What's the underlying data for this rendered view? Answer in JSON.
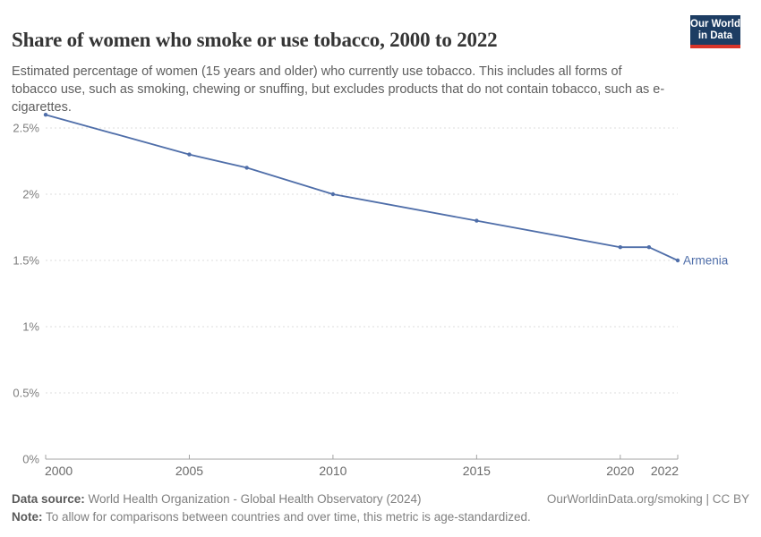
{
  "header": {
    "title": "Share of women who smoke or use tobacco, 2000 to 2022",
    "logo": {
      "line1": "Our World",
      "line2": "in Data"
    }
  },
  "subtitle": "Estimated percentage of women (15 years and older) who currently use tobacco. This includes all forms of tobacco use, such as smoking, chewing or snuffing, but excludes products that do not contain tobacco, such as e-cigarettes.",
  "chart_data": {
    "type": "line",
    "title": "Share of women who smoke or use tobacco, 2000 to 2022",
    "series": [
      {
        "name": "Armenia",
        "color": "#4F6EA9",
        "x": [
          2000,
          2005,
          2007,
          2010,
          2015,
          2020,
          2021,
          2022
        ],
        "values": [
          2.6,
          2.3,
          2.2,
          2.0,
          1.8,
          1.6,
          1.6,
          1.5
        ]
      }
    ],
    "end_label": "Armenia",
    "xlabel": "",
    "ylabel": "",
    "xlim": [
      2000,
      2022
    ],
    "ylim": [
      0,
      2.5
    ],
    "x_ticks": [
      2000,
      2005,
      2010,
      2015,
      2020,
      2022
    ],
    "x_tick_labels": [
      "2000",
      "2005",
      "2010",
      "2015",
      "2020",
      "2022"
    ],
    "y_ticks": [
      0,
      0.5,
      1,
      1.5,
      2,
      2.5
    ],
    "y_tick_labels": [
      "0%",
      "0.5%",
      "1%",
      "1.5%",
      "2%",
      "2.5%"
    ],
    "grid": "horizontal-dashed",
    "legend_position": "end-of-line",
    "colors": {
      "gridline": "#DCDCDC",
      "axis": "#A3A3A3",
      "y_tick_label": "#7E7E7E",
      "x_tick_label": "#696969"
    }
  },
  "footer": {
    "data_source_label": "Data source:",
    "data_source": " World Health Organization - Global Health Observatory (2024)",
    "note_label": "Note:",
    "note": " To allow for comparisons between countries and over time, this metric is age-standardized.",
    "link": "OurWorldinData.org/smoking | CC BY"
  }
}
